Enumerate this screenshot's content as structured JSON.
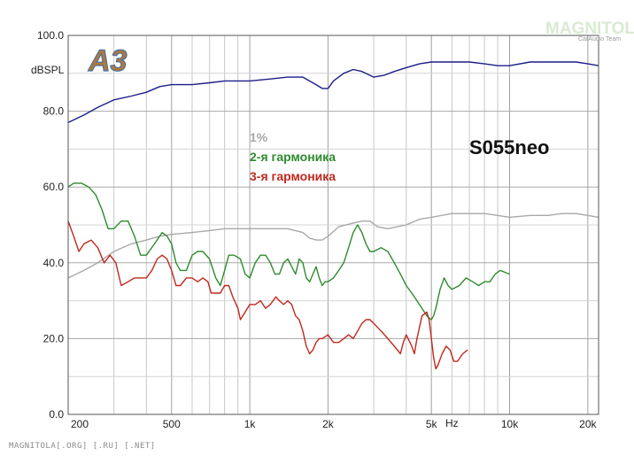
{
  "chart_data": {
    "type": "line",
    "title": "S055neo",
    "badge": "A3",
    "ylabel": "dBSPL",
    "xlabel": "Hz",
    "x_scale": "log",
    "xlim": [
      200,
      22000
    ],
    "ylim": [
      0,
      100
    ],
    "x_ticks": [
      {
        "v": 200,
        "label": "200"
      },
      {
        "v": 500,
        "label": "500"
      },
      {
        "v": 1000,
        "label": "1k"
      },
      {
        "v": 2000,
        "label": "2k"
      },
      {
        "v": 5000,
        "label": "5k"
      },
      {
        "v": 10000,
        "label": "10k"
      },
      {
        "v": 20000,
        "label": "20k"
      }
    ],
    "x_minor_gridlines": [
      300,
      400,
      600,
      700,
      800,
      900,
      3000,
      4000,
      6000,
      7000,
      8000,
      9000
    ],
    "y_ticks": [
      {
        "v": 0,
        "label": "0.0"
      },
      {
        "v": 20,
        "label": "20.0"
      },
      {
        "v": 40,
        "label": "40.0"
      },
      {
        "v": 60,
        "label": "60.0"
      },
      {
        "v": 80,
        "label": "80.0"
      },
      {
        "v": 100,
        "label": "100.0"
      }
    ],
    "y_minor_gridlines": [
      10,
      30,
      50,
      70,
      90
    ],
    "grid": true,
    "series": [
      {
        "name": "",
        "color": "#1c1c8a",
        "points": [
          [
            200,
            77
          ],
          [
            230,
            79
          ],
          [
            260,
            81
          ],
          [
            300,
            83
          ],
          [
            350,
            84
          ],
          [
            400,
            85
          ],
          [
            450,
            86.5
          ],
          [
            500,
            87
          ],
          [
            600,
            87
          ],
          [
            700,
            87.5
          ],
          [
            800,
            88
          ],
          [
            1000,
            88
          ],
          [
            1200,
            88.5
          ],
          [
            1400,
            89
          ],
          [
            1600,
            89
          ],
          [
            1800,
            87
          ],
          [
            1900,
            86
          ],
          [
            2000,
            86
          ],
          [
            2100,
            88
          ],
          [
            2300,
            90
          ],
          [
            2500,
            91
          ],
          [
            2700,
            90.5
          ],
          [
            3000,
            89
          ],
          [
            3300,
            89.5
          ],
          [
            3600,
            90.5
          ],
          [
            4000,
            91.5
          ],
          [
            4500,
            92.5
          ],
          [
            5000,
            93
          ],
          [
            6000,
            93
          ],
          [
            7000,
            93
          ],
          [
            8000,
            92.5
          ],
          [
            9000,
            92
          ],
          [
            10000,
            92
          ],
          [
            12000,
            93
          ],
          [
            14000,
            93
          ],
          [
            16000,
            93
          ],
          [
            18000,
            93
          ],
          [
            20000,
            92.5
          ],
          [
            22000,
            92
          ]
        ]
      },
      {
        "name": "1%",
        "color": "#a8a8a8",
        "points": [
          [
            200,
            36
          ],
          [
            230,
            38
          ],
          [
            260,
            40
          ],
          [
            300,
            43
          ],
          [
            350,
            45
          ],
          [
            400,
            46
          ],
          [
            450,
            47
          ],
          [
            500,
            47.5
          ],
          [
            600,
            48
          ],
          [
            700,
            48.5
          ],
          [
            800,
            49
          ],
          [
            1000,
            49
          ],
          [
            1200,
            49
          ],
          [
            1400,
            49
          ],
          [
            1600,
            48
          ],
          [
            1700,
            46.5
          ],
          [
            1800,
            46
          ],
          [
            1900,
            46
          ],
          [
            2000,
            47
          ],
          [
            2200,
            49.5
          ],
          [
            2500,
            50.5
          ],
          [
            2700,
            51
          ],
          [
            2900,
            51
          ],
          [
            3100,
            49.5
          ],
          [
            3400,
            49
          ],
          [
            4000,
            50
          ],
          [
            4500,
            51.5
          ],
          [
            5000,
            52
          ],
          [
            6000,
            53
          ],
          [
            7000,
            53
          ],
          [
            8000,
            53
          ],
          [
            9000,
            52.5
          ],
          [
            10000,
            52
          ],
          [
            12000,
            52.5
          ],
          [
            14000,
            52.5
          ],
          [
            16000,
            53
          ],
          [
            18000,
            53
          ],
          [
            20000,
            52.5
          ],
          [
            22000,
            52
          ]
        ]
      },
      {
        "name": "2-я гармоника",
        "color": "#2e8b2e",
        "points": [
          [
            200,
            60
          ],
          [
            210,
            61
          ],
          [
            225,
            61
          ],
          [
            240,
            60
          ],
          [
            255,
            58
          ],
          [
            270,
            54
          ],
          [
            285,
            49
          ],
          [
            300,
            49
          ],
          [
            320,
            51
          ],
          [
            340,
            51
          ],
          [
            360,
            47
          ],
          [
            380,
            42
          ],
          [
            400,
            42
          ],
          [
            430,
            45
          ],
          [
            460,
            48
          ],
          [
            480,
            47
          ],
          [
            500,
            45
          ],
          [
            520,
            40
          ],
          [
            540,
            38
          ],
          [
            570,
            38
          ],
          [
            600,
            42
          ],
          [
            630,
            43
          ],
          [
            660,
            43
          ],
          [
            700,
            41
          ],
          [
            740,
            36
          ],
          [
            770,
            34
          ],
          [
            800,
            38
          ],
          [
            830,
            42
          ],
          [
            870,
            42
          ],
          [
            920,
            41
          ],
          [
            960,
            37
          ],
          [
            1000,
            36
          ],
          [
            1050,
            40
          ],
          [
            1100,
            42
          ],
          [
            1150,
            42
          ],
          [
            1200,
            40
          ],
          [
            1250,
            37
          ],
          [
            1300,
            37
          ],
          [
            1350,
            40
          ],
          [
            1400,
            41
          ],
          [
            1450,
            39
          ],
          [
            1500,
            37
          ],
          [
            1550,
            41
          ],
          [
            1600,
            40
          ],
          [
            1650,
            36
          ],
          [
            1700,
            35
          ],
          [
            1750,
            37
          ],
          [
            1800,
            39
          ],
          [
            1850,
            36
          ],
          [
            1900,
            34
          ],
          [
            1950,
            35
          ],
          [
            2000,
            35
          ],
          [
            2100,
            36
          ],
          [
            2200,
            38
          ],
          [
            2300,
            40
          ],
          [
            2400,
            44
          ],
          [
            2500,
            48
          ],
          [
            2600,
            50
          ],
          [
            2700,
            48
          ],
          [
            2800,
            45
          ],
          [
            2900,
            43
          ],
          [
            3000,
            43
          ],
          [
            3200,
            44
          ],
          [
            3400,
            43
          ],
          [
            3600,
            40
          ],
          [
            3800,
            37
          ],
          [
            4000,
            34
          ],
          [
            4200,
            32
          ],
          [
            4400,
            30
          ],
          [
            4600,
            28
          ],
          [
            4800,
            26
          ],
          [
            5000,
            25
          ],
          [
            5100,
            26
          ],
          [
            5200,
            28
          ],
          [
            5400,
            33
          ],
          [
            5600,
            36
          ],
          [
            5800,
            34
          ],
          [
            6000,
            33
          ],
          [
            6400,
            34
          ],
          [
            6800,
            36
          ],
          [
            7200,
            35
          ],
          [
            7600,
            34
          ],
          [
            8000,
            35
          ],
          [
            8400,
            35
          ],
          [
            8800,
            37
          ],
          [
            9200,
            38
          ],
          [
            9600,
            37.5
          ],
          [
            10000,
            37
          ]
        ]
      },
      {
        "name": "3-я гармоника",
        "color": "#c0281e",
        "points": [
          [
            200,
            51
          ],
          [
            210,
            47
          ],
          [
            220,
            43
          ],
          [
            230,
            45
          ],
          [
            245,
            46
          ],
          [
            260,
            44
          ],
          [
            275,
            40
          ],
          [
            290,
            42
          ],
          [
            305,
            40
          ],
          [
            320,
            34
          ],
          [
            340,
            35
          ],
          [
            360,
            36
          ],
          [
            380,
            36
          ],
          [
            400,
            36
          ],
          [
            420,
            38
          ],
          [
            440,
            41
          ],
          [
            460,
            42
          ],
          [
            480,
            41
          ],
          [
            500,
            38
          ],
          [
            520,
            34
          ],
          [
            540,
            34
          ],
          [
            570,
            36
          ],
          [
            600,
            36
          ],
          [
            630,
            35
          ],
          [
            660,
            36
          ],
          [
            690,
            35
          ],
          [
            710,
            32
          ],
          [
            740,
            32
          ],
          [
            770,
            32
          ],
          [
            800,
            34
          ],
          [
            830,
            34
          ],
          [
            860,
            31
          ],
          [
            900,
            28
          ],
          [
            920,
            25
          ],
          [
            960,
            27
          ],
          [
            1000,
            29
          ],
          [
            1050,
            29
          ],
          [
            1100,
            30
          ],
          [
            1150,
            28
          ],
          [
            1200,
            29
          ],
          [
            1260,
            31
          ],
          [
            1300,
            30
          ],
          [
            1350,
            29
          ],
          [
            1400,
            30
          ],
          [
            1450,
            29
          ],
          [
            1500,
            26
          ],
          [
            1550,
            25
          ],
          [
            1600,
            22
          ],
          [
            1650,
            18
          ],
          [
            1700,
            16
          ],
          [
            1750,
            17
          ],
          [
            1800,
            19
          ],
          [
            1850,
            20
          ],
          [
            1900,
            20
          ],
          [
            2000,
            21
          ],
          [
            2100,
            19
          ],
          [
            2200,
            19
          ],
          [
            2300,
            20
          ],
          [
            2400,
            21
          ],
          [
            2500,
            20
          ],
          [
            2600,
            22
          ],
          [
            2700,
            24
          ],
          [
            2800,
            25
          ],
          [
            2900,
            25
          ],
          [
            3000,
            24
          ],
          [
            3200,
            22
          ],
          [
            3400,
            20
          ],
          [
            3600,
            18
          ],
          [
            3800,
            16
          ],
          [
            3900,
            19
          ],
          [
            4000,
            21
          ],
          [
            4200,
            18
          ],
          [
            4300,
            16
          ],
          [
            4400,
            20
          ],
          [
            4600,
            26
          ],
          [
            4800,
            27
          ],
          [
            4900,
            25
          ],
          [
            5000,
            20
          ],
          [
            5100,
            15
          ],
          [
            5200,
            12
          ],
          [
            5300,
            13
          ],
          [
            5500,
            16
          ],
          [
            5700,
            18
          ],
          [
            5900,
            17
          ],
          [
            6100,
            14
          ],
          [
            6300,
            14
          ],
          [
            6600,
            16
          ],
          [
            6900,
            17
          ]
        ]
      }
    ]
  },
  "watermark": {
    "brand": "MAGNITOLA",
    "tagline": "CarAudio Team"
  },
  "footer_text": "MAGNITOLA[.ORG] [.RU] [.NET]"
}
